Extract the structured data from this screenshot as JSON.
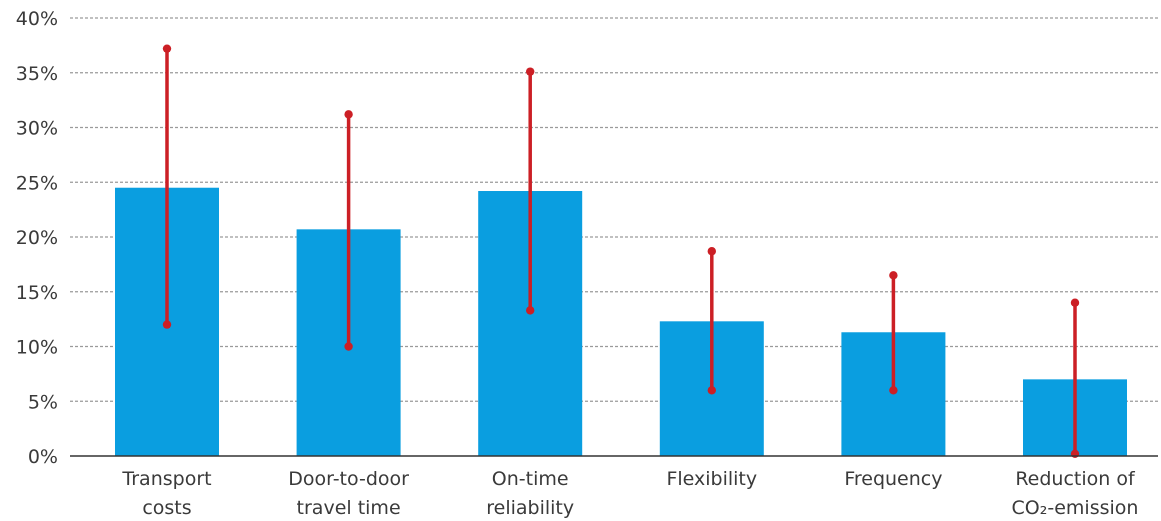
{
  "chart_data": {
    "type": "bar",
    "title": "",
    "xlabel": "",
    "ylabel": "",
    "ylim": [
      0,
      40
    ],
    "y_ticks": [
      0,
      5,
      10,
      15,
      20,
      25,
      30,
      35,
      40
    ],
    "y_tick_labels": [
      "0%",
      "5%",
      "10%",
      "15%",
      "20%",
      "25%",
      "30%",
      "35%",
      "40%"
    ],
    "grid": true,
    "legend": "none",
    "categories": [
      [
        "Transport",
        "costs"
      ],
      [
        "Door-to-door",
        "travel time"
      ],
      [
        "On-time",
        "reliability"
      ],
      [
        "Flexibility"
      ],
      [
        "Frequency"
      ],
      [
        "Reduction of",
        "CO₂-emission"
      ]
    ],
    "values": [
      24.5,
      20.7,
      24.2,
      12.3,
      11.3,
      7.0
    ],
    "error_low": [
      12.0,
      10.0,
      13.3,
      6.0,
      6.0,
      0.2
    ],
    "error_high": [
      37.2,
      31.2,
      35.1,
      18.7,
      16.5,
      14.0
    ],
    "colors": {
      "bar": "#0a9ee0",
      "error": "#cc1f25"
    }
  }
}
